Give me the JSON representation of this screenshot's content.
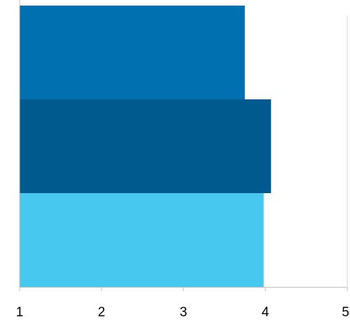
{
  "chart_data": {
    "type": "bar",
    "orientation": "horizontal",
    "title": "",
    "xlabel": "",
    "ylabel": "",
    "xlim": [
      1,
      5
    ],
    "x_ticks": [
      "1",
      "2",
      "3",
      "4",
      "5"
    ],
    "grid": false,
    "legend": "none",
    "categories": [
      "",
      "",
      ""
    ],
    "values": [
      3.75,
      4.07,
      3.98
    ],
    "colors": [
      "#0070b0",
      "#005a8d",
      "#47c8ef"
    ],
    "axis_color": "#bfbfbf"
  }
}
